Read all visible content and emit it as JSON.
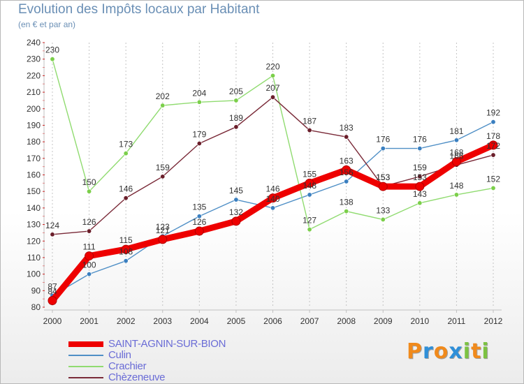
{
  "title": "Evolution des Impôts locaux par Habitant",
  "subtitle": "(en € et par an)",
  "logo": {
    "text": "Proxiti",
    "letter_colors": [
      "#f08a1c",
      "#2f8fd8",
      "#f08a1c",
      "#2f8fd8",
      "#7cc242",
      "#f08a1c",
      "#7cc242"
    ]
  },
  "chart_data": {
    "type": "line",
    "title": "Evolution des Impôts locaux par Habitant",
    "subtitle": "(en € et par an)",
    "xlabel": "",
    "ylabel": "",
    "x": [
      "2000",
      "2001",
      "2002",
      "2003",
      "2004",
      "2005",
      "2006",
      "2007",
      "2008",
      "2009",
      "2010",
      "2011",
      "2012"
    ],
    "ylim": [
      80,
      240
    ],
    "yticks": [
      80,
      90,
      100,
      110,
      120,
      130,
      140,
      150,
      160,
      170,
      180,
      190,
      200,
      210,
      220,
      230,
      240
    ],
    "grid": "vertical",
    "legend_position": "bottom-left",
    "series": [
      {
        "name": "Culin",
        "color": "#4f8fc6",
        "dot": "#3a7fc0",
        "values": [
          87,
          100,
          108,
          123,
          135,
          145,
          140,
          148,
          156,
          176,
          176,
          181,
          192
        ]
      },
      {
        "name": "Crachier",
        "color": "#90db70",
        "dot": "#7bcf4a",
        "values": [
          230,
          150,
          173,
          202,
          204,
          205,
          220,
          127,
          138,
          133,
          143,
          148,
          152
        ]
      },
      {
        "name": "Chèzeneuve",
        "color": "#7a2a38",
        "dot": "#6a1e2a",
        "values": [
          124,
          126,
          146,
          159,
          179,
          189,
          207,
          187,
          183,
          153,
          159,
          166,
          172
        ]
      },
      {
        "name": "SAINT-AGNIN-SUR-BION",
        "color": "#ee0000",
        "dot": "#ee0000",
        "values": [
          84,
          111,
          115,
          121,
          126,
          132,
          146,
          155,
          163,
          153,
          153,
          168,
          178
        ]
      }
    ]
  }
}
